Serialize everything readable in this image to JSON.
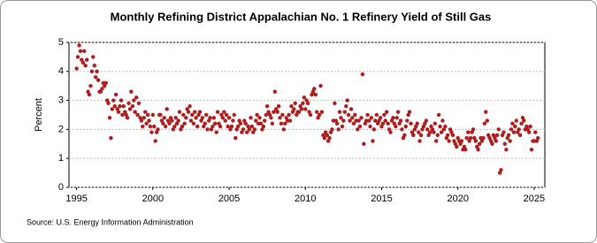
{
  "chart_data": {
    "type": "scatter",
    "title": "Monthly Refining District Appalachian No. 1 Refinery Yield of Still Gas",
    "ylabel": "Percent",
    "source": "Source: U.S. Energy Information Administration",
    "color": "#b01c1c",
    "grid": true,
    "xlim": [
      1994.5,
      2025.7
    ],
    "xticks": [
      1995,
      2000,
      2005,
      2010,
      2015,
      2020,
      2025
    ],
    "ylim": [
      0,
      5
    ],
    "yticks": [
      0,
      1,
      2,
      3,
      4,
      5
    ],
    "x": [
      1995.0,
      1995.08,
      1995.17,
      1995.25,
      1995.33,
      1995.42,
      1995.5,
      1995.58,
      1995.67,
      1995.75,
      1995.83,
      1995.92,
      1996.0,
      1996.08,
      1996.17,
      1996.25,
      1996.33,
      1996.42,
      1996.5,
      1996.58,
      1996.67,
      1996.75,
      1996.83,
      1996.92,
      1997.0,
      1997.08,
      1997.17,
      1997.25,
      1997.33,
      1997.42,
      1997.5,
      1997.58,
      1997.67,
      1997.75,
      1997.83,
      1997.92,
      1998.0,
      1998.08,
      1998.17,
      1998.25,
      1998.33,
      1998.42,
      1998.5,
      1998.58,
      1998.67,
      1998.75,
      1998.83,
      1998.92,
      1999.0,
      1999.08,
      1999.17,
      1999.25,
      1999.33,
      1999.42,
      1999.5,
      1999.58,
      1999.67,
      1999.75,
      1999.83,
      1999.92,
      2000.0,
      2000.08,
      2000.17,
      2000.25,
      2000.33,
      2000.42,
      2000.5,
      2000.58,
      2000.67,
      2000.75,
      2000.83,
      2000.92,
      2001.0,
      2001.08,
      2001.17,
      2001.25,
      2001.33,
      2001.42,
      2001.5,
      2001.58,
      2001.67,
      2001.75,
      2001.83,
      2001.92,
      2002.0,
      2002.08,
      2002.17,
      2002.25,
      2002.33,
      2002.42,
      2002.5,
      2002.58,
      2002.67,
      2002.75,
      2002.83,
      2002.92,
      2003.0,
      2003.08,
      2003.17,
      2003.25,
      2003.33,
      2003.42,
      2003.5,
      2003.58,
      2003.67,
      2003.75,
      2003.83,
      2003.92,
      2004.0,
      2004.08,
      2004.17,
      2004.25,
      2004.33,
      2004.42,
      2004.5,
      2004.58,
      2004.67,
      2004.75,
      2004.83,
      2004.92,
      2005.0,
      2005.08,
      2005.17,
      2005.25,
      2005.33,
      2005.42,
      2005.5,
      2005.58,
      2005.67,
      2005.75,
      2005.83,
      2005.92,
      2006.0,
      2006.08,
      2006.17,
      2006.25,
      2006.33,
      2006.42,
      2006.5,
      2006.58,
      2006.67,
      2006.75,
      2006.83,
      2006.92,
      2007.0,
      2007.08,
      2007.17,
      2007.25,
      2007.33,
      2007.42,
      2007.5,
      2007.58,
      2007.67,
      2007.75,
      2007.83,
      2007.92,
      2008.0,
      2008.08,
      2008.17,
      2008.25,
      2008.33,
      2008.42,
      2008.5,
      2008.58,
      2008.67,
      2008.75,
      2008.83,
      2008.92,
      2009.0,
      2009.08,
      2009.17,
      2009.25,
      2009.33,
      2009.42,
      2009.5,
      2009.58,
      2009.67,
      2009.75,
      2009.83,
      2009.92,
      2010.0,
      2010.08,
      2010.17,
      2010.25,
      2010.33,
      2010.42,
      2010.5,
      2010.58,
      2010.67,
      2010.75,
      2010.83,
      2010.92,
      2011.0,
      2011.08,
      2011.17,
      2011.25,
      2011.33,
      2011.42,
      2011.5,
      2011.58,
      2011.67,
      2011.75,
      2011.83,
      2011.92,
      2012.0,
      2012.08,
      2012.17,
      2012.25,
      2012.33,
      2012.42,
      2012.5,
      2012.58,
      2012.67,
      2012.75,
      2012.83,
      2012.92,
      2013.0,
      2013.08,
      2013.17,
      2013.25,
      2013.33,
      2013.42,
      2013.5,
      2013.58,
      2013.67,
      2013.75,
      2013.83,
      2013.92,
      2014.0,
      2014.08,
      2014.17,
      2014.25,
      2014.33,
      2014.42,
      2014.5,
      2014.58,
      2014.67,
      2014.75,
      2014.83,
      2014.92,
      2015.0,
      2015.08,
      2015.17,
      2015.25,
      2015.33,
      2015.42,
      2015.5,
      2015.58,
      2015.67,
      2015.75,
      2015.83,
      2015.92,
      2016.0,
      2016.08,
      2016.17,
      2016.25,
      2016.33,
      2016.42,
      2016.5,
      2016.58,
      2016.67,
      2016.75,
      2016.83,
      2016.92,
      2017.0,
      2017.08,
      2017.17,
      2017.25,
      2017.33,
      2017.42,
      2017.5,
      2017.58,
      2017.67,
      2017.75,
      2017.83,
      2017.92,
      2018.0,
      2018.08,
      2018.17,
      2018.25,
      2018.33,
      2018.42,
      2018.5,
      2018.58,
      2018.67,
      2018.75,
      2018.83,
      2018.92,
      2019.0,
      2019.08,
      2019.17,
      2019.25,
      2019.33,
      2019.42,
      2019.5,
      2019.58,
      2019.67,
      2019.75,
      2019.83,
      2019.92,
      2020.0,
      2020.08,
      2020.17,
      2020.25,
      2020.33,
      2020.42,
      2020.5,
      2020.58,
      2020.67,
      2020.75,
      2020.83,
      2020.92,
      2021.0,
      2021.08,
      2021.17,
      2021.25,
      2021.33,
      2021.42,
      2021.5,
      2021.58,
      2021.67,
      2021.75,
      2021.83,
      2021.92,
      2022.0,
      2022.08,
      2022.17,
      2022.25,
      2022.33,
      2022.42,
      2022.5,
      2022.58,
      2022.67,
      2022.75,
      2022.83,
      2022.92,
      2023.0,
      2023.08,
      2023.17,
      2023.25,
      2023.33,
      2023.42,
      2023.5,
      2023.58,
      2023.67,
      2023.75,
      2023.83,
      2023.92,
      2024.0,
      2024.08,
      2024.17,
      2024.25,
      2024.33,
      2024.42,
      2024.5,
      2024.58,
      2024.67,
      2024.75,
      2024.83,
      2024.92,
      2025.0,
      2025.08,
      2025.17,
      2025.25
    ],
    "values": [
      4.1,
      4.5,
      4.9,
      4.7,
      4.4,
      4.3,
      4.7,
      4.2,
      4.4,
      3.3,
      3.2,
      3.5,
      4.0,
      4.5,
      4.2,
      3.8,
      4.0,
      3.7,
      3.3,
      3.3,
      3.4,
      3.6,
      3.5,
      3.6,
      3.0,
      2.9,
      2.4,
      1.7,
      2.7,
      3.0,
      2.8,
      3.2,
      2.7,
      2.6,
      2.8,
      3.0,
      2.5,
      2.8,
      2.6,
      2.5,
      2.4,
      2.9,
      2.7,
      3.3,
      2.8,
      3.0,
      2.6,
      3.1,
      2.5,
      2.9,
      2.4,
      2.3,
      2.1,
      2.4,
      2.6,
      2.2,
      2.5,
      2.3,
      2.1,
      1.9,
      2.5,
      2.1,
      1.6,
      1.9,
      2.0,
      2.5,
      2.5,
      2.3,
      2.2,
      2.4,
      2.1,
      2.7,
      2.3,
      2.2,
      2.4,
      2.3,
      2.0,
      2.1,
      2.4,
      2.2,
      2.3,
      2.6,
      2.0,
      2.1,
      2.5,
      2.2,
      2.4,
      2.7,
      2.6,
      2.8,
      2.3,
      2.5,
      2.2,
      2.6,
      2.4,
      2.1,
      2.5,
      2.6,
      2.3,
      2.4,
      2.1,
      2.2,
      2.5,
      2.0,
      2.3,
      2.4,
      2.0,
      2.1,
      2.4,
      2.2,
      1.9,
      2.6,
      2.2,
      2.1,
      2.5,
      2.4,
      2.6,
      2.3,
      2.5,
      2.1,
      2.4,
      2.0,
      2.1,
      2.3,
      2.5,
      1.7,
      2.0,
      2.1,
      2.3,
      2.2,
      1.9,
      2.0,
      2.3,
      2.2,
      1.9,
      2.1,
      2.0,
      2.4,
      2.1,
      1.9,
      2.0,
      2.3,
      2.5,
      2.2,
      2.4,
      2.2,
      2.0,
      2.1,
      2.3,
      2.5,
      2.8,
      2.6,
      2.5,
      2.4,
      2.2,
      2.6,
      3.3,
      2.7,
      2.6,
      2.8,
      2.4,
      2.2,
      2.5,
      2.0,
      2.2,
      2.4,
      2.3,
      2.5,
      2.3,
      2.8,
      2.6,
      2.7,
      2.9,
      2.5,
      2.6,
      2.6,
      2.8,
      2.7,
      2.9,
      3.1,
      2.7,
      3.0,
      2.9,
      2.6,
      2.5,
      3.2,
      3.3,
      3.4,
      3.2,
      2.6,
      2.4,
      2.5,
      3.5,
      2.6,
      1.8,
      1.7,
      1.9,
      1.8,
      1.6,
      1.7,
      1.9,
      2.0,
      2.3,
      2.9,
      2.3,
      2.2,
      2.0,
      2.6,
      2.4,
      2.1,
      2.3,
      2.6,
      2.8,
      3.0,
      2.5,
      2.3,
      2.7,
      2.4,
      2.2,
      2.5,
      2.3,
      2.0,
      2.3,
      2.1,
      2.4,
      3.9,
      1.5,
      2.2,
      2.3,
      2.5,
      2.3,
      2.1,
      2.4,
      1.6,
      2.0,
      2.3,
      2.5,
      2.2,
      2.3,
      2.4,
      2.1,
      2.2,
      2.5,
      2.3,
      2.6,
      2.2,
      2.0,
      1.9,
      2.3,
      2.4,
      2.2,
      2.1,
      2.4,
      2.6,
      2.2,
      2.3,
      2.0,
      1.7,
      1.8,
      2.1,
      2.3,
      2.5,
      2.6,
      2.2,
      1.9,
      1.8,
      2.0,
      2.1,
      2.2,
      1.9,
      1.6,
      1.8,
      2.0,
      2.1,
      2.2,
      2.3,
      2.0,
      1.8,
      1.9,
      2.1,
      2.0,
      1.9,
      2.2,
      1.6,
      1.8,
      2.5,
      2.1,
      1.9,
      2.3,
      2.0,
      2.1,
      1.7,
      1.8,
      1.6,
      2.0,
      1.9,
      1.8,
      1.6,
      1.5,
      1.4,
      1.7,
      1.6,
      1.5,
      1.6,
      1.3,
      1.4,
      1.3,
      1.7,
      1.9,
      1.6,
      1.7,
      1.9,
      2.0,
      1.7,
      1.6,
      1.4,
      1.3,
      1.5,
      1.7,
      1.6,
      1.7,
      2.2,
      2.6,
      2.3,
      1.8,
      1.7,
      1.6,
      1.5,
      1.8,
      1.7,
      1.6,
      1.8,
      2.0,
      0.5,
      0.6,
      1.8,
      1.9,
      1.5,
      1.3,
      1.7,
      1.8,
      1.6,
      2.0,
      2.2,
      1.9,
      2.1,
      2.3,
      1.9,
      2.0,
      1.8,
      2.2,
      2.4,
      2.3,
      2.0,
      2.1,
      2.0,
      1.9,
      2.1,
      1.3,
      1.6,
      1.6,
      1.9,
      1.6,
      1.7
    ]
  }
}
